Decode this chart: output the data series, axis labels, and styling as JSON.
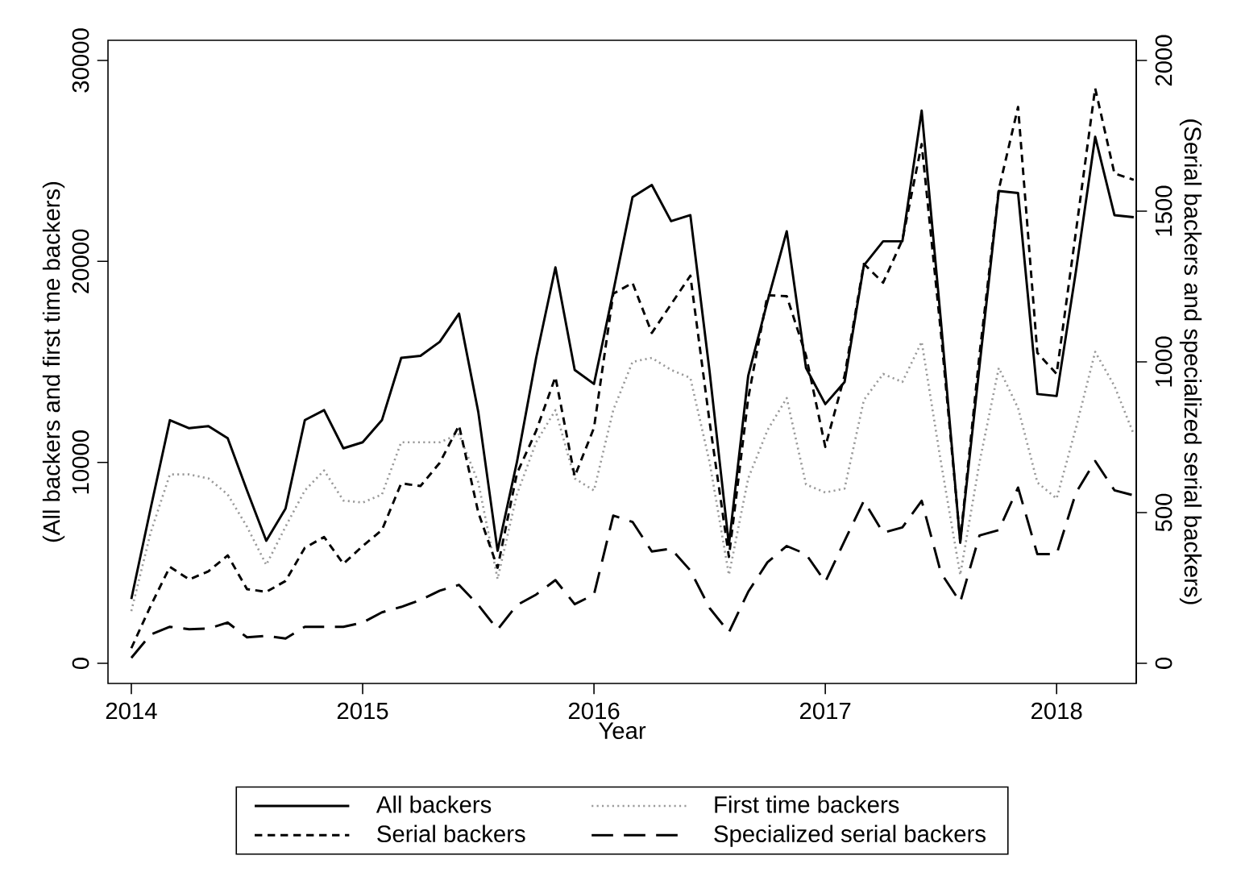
{
  "chart_data": {
    "type": "line",
    "xlabel": "Year",
    "ylabel": "(All backers and first time backers)",
    "y2label": "(Serial backers and specialized serial backers)",
    "x": [
      "2014-01",
      "2014-02",
      "2014-03",
      "2014-04",
      "2014-05",
      "2014-06",
      "2014-07",
      "2014-08",
      "2014-09",
      "2014-10",
      "2014-11",
      "2014-12",
      "2015-01",
      "2015-02",
      "2015-03",
      "2015-04",
      "2015-05",
      "2015-06",
      "2015-07",
      "2015-08",
      "2015-09",
      "2015-10",
      "2015-11",
      "2015-12",
      "2016-01",
      "2016-02",
      "2016-03",
      "2016-04",
      "2016-05",
      "2016-06",
      "2016-07",
      "2016-08",
      "2016-09",
      "2016-10",
      "2016-11",
      "2016-12",
      "2017-01",
      "2017-02",
      "2017-03",
      "2017-04",
      "2017-05",
      "2017-06",
      "2017-07",
      "2017-08",
      "2017-09",
      "2017-10",
      "2017-11",
      "2017-12",
      "2018-01",
      "2018-02",
      "2018-03",
      "2018-04",
      "2018-05"
    ],
    "series": [
      {
        "name": "All backers",
        "color": "#000000",
        "line_style": "solid",
        "axis": "y",
        "values": [
          3200,
          7700,
          12100,
          11700,
          11800,
          11200,
          8600,
          6100,
          7700,
          12100,
          12600,
          10700,
          11000,
          12100,
          15200,
          15300,
          16000,
          17400,
          12500,
          5600,
          10000,
          15200,
          19700,
          14600,
          13900,
          18500,
          23200,
          23800,
          22000,
          22300,
          14500,
          5900,
          14300,
          18000,
          21500,
          14700,
          12900,
          14000,
          19800,
          21000,
          21000,
          27500,
          17000,
          6000,
          14800,
          23500,
          23400,
          13400,
          13300,
          19500,
          26200,
          22300,
          22200
        ]
      },
      {
        "name": "First time backers",
        "color": "#9a9a9a",
        "line_style": "dotted",
        "axis": "y",
        "values": [
          2600,
          6500,
          9400,
          9400,
          9200,
          8400,
          6800,
          4900,
          6800,
          8600,
          9600,
          8100,
          8000,
          8400,
          11000,
          11000,
          11000,
          11400,
          9000,
          4200,
          8400,
          11000,
          12600,
          9200,
          8600,
          12600,
          15000,
          15200,
          14600,
          14200,
          10000,
          4400,
          9200,
          11600,
          13200,
          8900,
          8500,
          8700,
          13100,
          14400,
          14000,
          16000,
          10000,
          4400,
          10000,
          14700,
          12700,
          9000,
          8200,
          11700,
          15500,
          13800,
          11400
        ]
      },
      {
        "name": "Serial backers",
        "color": "#000000",
        "line_style": "dashed",
        "axis": "y2",
        "values": [
          50,
          190,
          320,
          278,
          305,
          358,
          246,
          237,
          273,
          383,
          419,
          330,
          389,
          442,
          597,
          588,
          665,
          789,
          500,
          317,
          629,
          771,
          950,
          620,
          781,
          1226,
          1262,
          1096,
          1191,
          1286,
          800,
          353,
          879,
          1221,
          1218,
          1021,
          718,
          954,
          1325,
          1263,
          1405,
          1723,
          1095,
          406,
          1025,
          1572,
          1846,
          1030,
          960,
          1431,
          1908,
          1625,
          1604
        ]
      },
      {
        "name": "Specialized serial backers",
        "color": "#000000",
        "line_style": "long dashed",
        "axis": "y2",
        "values": [
          18,
          95,
          121,
          113,
          115,
          135,
          86,
          91,
          82,
          121,
          121,
          121,
          135,
          169,
          187,
          210,
          241,
          260,
          193,
          112,
          193,
          228,
          276,
          196,
          228,
          490,
          469,
          371,
          380,
          308,
          183,
          103,
          237,
          335,
          389,
          362,
          270,
          406,
          539,
          433,
          451,
          539,
          300,
          203,
          424,
          442,
          583,
          362,
          362,
          565,
          671,
          574,
          557
        ]
      }
    ],
    "xlim": [
      "2013-11-25",
      "2018-05-05"
    ],
    "xticks": [
      "2014",
      "2015",
      "2016",
      "2017",
      "2018"
    ],
    "ylim": [
      -1000,
      31000
    ],
    "yticks": [
      0,
      10000,
      20000,
      30000
    ],
    "y2lim": [
      -67,
      2067
    ],
    "y2ticks": [
      0,
      500,
      1000,
      1500,
      2000
    ],
    "grid": false,
    "legend": "bottom",
    "marker": "none"
  }
}
